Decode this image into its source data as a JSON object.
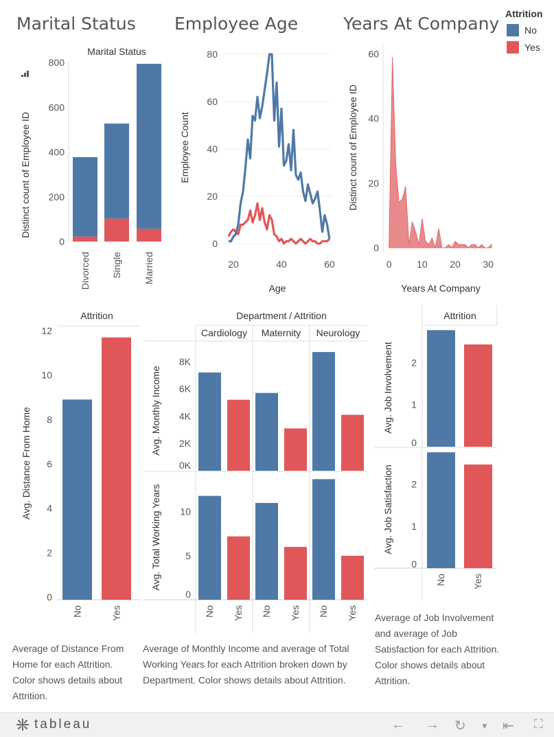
{
  "titles": {
    "marital": "Marital Status",
    "age": "Employee Age",
    "years": "Years At Company"
  },
  "colors": {
    "no": "#4e79a7",
    "yes": "#e15759",
    "yes_area": "#e88a8c"
  },
  "legend": {
    "title": "Attrition",
    "items": [
      "No",
      "Yes"
    ]
  },
  "captions": {
    "distance": "Average of Distance From Home for each Attrition.  Color shows details about Attrition.",
    "dept": "Average of Monthly Income and average of Total Working Years for each Attrition broken down by Department.  Color shows details about Attrition.",
    "job": "Average of Job Involvement and average of Job Satisfaction for each Attrition.  Color shows details about Attrition."
  },
  "footer": {
    "logo": "tableau"
  },
  "chart_data": [
    {
      "id": "marital",
      "type": "bar",
      "stacked": true,
      "title": "Marital Status",
      "ylabel": "Distinct count of Employee ID",
      "categories": [
        "Divorced",
        "Single",
        "Married"
      ],
      "series": [
        {
          "name": "No",
          "values": [
            355,
            425,
            738
          ]
        },
        {
          "name": "Yes",
          "values": [
            22,
            102,
            56
          ]
        }
      ],
      "ylim": [
        0,
        800
      ],
      "yticks": [
        0,
        200,
        400,
        600,
        800
      ]
    },
    {
      "id": "age",
      "type": "line",
      "xlabel": "Age",
      "ylabel": "Employee Count",
      "xlim": [
        18,
        60
      ],
      "ylim": [
        0,
        80
      ],
      "xticks": [
        20,
        40,
        60
      ],
      "yticks": [
        0,
        20,
        40,
        60,
        80
      ],
      "series": [
        {
          "name": "No",
          "x": [
            18,
            19,
            20,
            21,
            22,
            23,
            24,
            25,
            26,
            27,
            28,
            29,
            30,
            31,
            32,
            33,
            34,
            35,
            36,
            37,
            38,
            39,
            40,
            41,
            42,
            43,
            44,
            45,
            46,
            47,
            48,
            49,
            50,
            51,
            52,
            53,
            54,
            55,
            56,
            57,
            58,
            59,
            60
          ],
          "values": [
            1,
            1,
            3,
            4,
            8,
            17,
            22,
            32,
            44,
            36,
            54,
            52,
            62,
            53,
            58,
            65,
            72,
            80,
            80,
            52,
            68,
            41,
            57,
            33,
            35,
            42,
            31,
            48,
            29,
            27,
            30,
            22,
            18,
            25,
            21,
            17,
            19,
            22,
            14,
            5,
            12,
            8,
            2
          ]
        },
        {
          "name": "Yes",
          "x": [
            18,
            19,
            20,
            21,
            22,
            23,
            24,
            25,
            26,
            27,
            28,
            29,
            30,
            31,
            32,
            33,
            34,
            35,
            36,
            37,
            38,
            39,
            40,
            41,
            42,
            43,
            44,
            45,
            46,
            47,
            48,
            49,
            50,
            51,
            52,
            53,
            54,
            55,
            56,
            57,
            58,
            59,
            60
          ],
          "values": [
            3,
            5,
            6,
            5,
            4,
            8,
            8,
            9,
            10,
            14,
            9,
            12,
            17,
            10,
            15,
            9,
            6,
            12,
            10,
            4,
            3,
            1,
            2,
            0,
            1,
            1,
            2,
            1,
            0,
            1,
            2,
            1,
            0,
            1,
            2,
            1,
            1,
            0,
            0,
            1,
            1,
            1,
            2
          ]
        }
      ]
    },
    {
      "id": "years",
      "type": "area",
      "xlabel": "Years At Company",
      "ylabel": "Distinct count of Employee ID",
      "xlim": [
        -1,
        31
      ],
      "ylim": [
        0,
        62
      ],
      "xticks": [
        0,
        10,
        20,
        30
      ],
      "yticks": [
        0,
        20,
        40,
        60
      ],
      "series": [
        {
          "name": "Yes",
          "x": [
            0,
            1,
            2,
            3,
            4,
            5,
            6,
            7,
            8,
            9,
            10,
            11,
            12,
            13,
            14,
            15,
            16,
            17,
            18,
            19,
            20,
            21,
            22,
            23,
            24,
            25,
            26,
            27,
            28,
            29,
            30,
            31
          ],
          "values": [
            2,
            59,
            26,
            14,
            15,
            19,
            1,
            8,
            5,
            1,
            9,
            2,
            1,
            3,
            0,
            6,
            0,
            0,
            1,
            0,
            2,
            1,
            1,
            1,
            0,
            1,
            1,
            0,
            1,
            0,
            0,
            1
          ]
        }
      ]
    },
    {
      "id": "distance",
      "type": "bar",
      "title": "Attrition",
      "ylabel": "Avg. Distance From Home",
      "categories": [
        "No",
        "Yes"
      ],
      "values": [
        8.9,
        11.7
      ],
      "ylim": [
        0,
        12
      ],
      "yticks": [
        0,
        2,
        4,
        6,
        8,
        10,
        12
      ]
    },
    {
      "id": "dept",
      "type": "bar",
      "title": "Department / Attrition",
      "departments": [
        "Cardiology",
        "Maternity",
        "Neurology"
      ],
      "categories": [
        "No",
        "Yes"
      ],
      "panels": [
        {
          "ylabel": "Avg. Monthly Income",
          "yticks": [
            0,
            2000,
            4000,
            6000,
            8000
          ],
          "ytick_labels": [
            "0K",
            "2K",
            "4K",
            "6K",
            "8K"
          ],
          "values": [
            [
              7200,
              5200
            ],
            [
              5700,
              3100
            ],
            [
              8700,
              4100
            ]
          ]
        },
        {
          "ylabel": "Avg. Total Working Years",
          "yticks": [
            0,
            5,
            10
          ],
          "ytick_labels": [
            "0",
            "5",
            "10"
          ],
          "values": [
            [
              11.8,
              7.2
            ],
            [
              11.0,
              6.0
            ],
            [
              13.7,
              5.0
            ]
          ]
        }
      ]
    },
    {
      "id": "job",
      "type": "bar",
      "title": "Attrition",
      "categories": [
        "No",
        "Yes"
      ],
      "panels": [
        {
          "ylabel": "Avg. Job Involvement",
          "yticks": [
            0,
            1,
            2
          ],
          "values": [
            2.77,
            2.43
          ]
        },
        {
          "ylabel": "Avg. Job Satisfaction",
          "yticks": [
            0,
            1,
            2
          ],
          "values": [
            2.76,
            2.47
          ]
        }
      ]
    }
  ]
}
